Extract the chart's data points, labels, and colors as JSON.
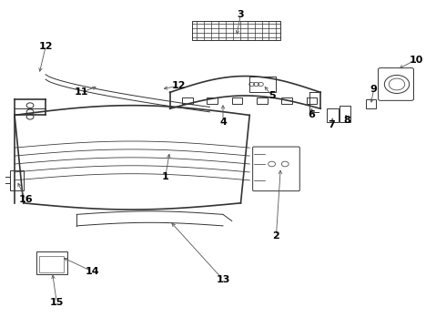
{
  "background_color": "#ffffff",
  "line_color": "#333333",
  "fig_width": 4.9,
  "fig_height": 3.6,
  "dpi": 100
}
